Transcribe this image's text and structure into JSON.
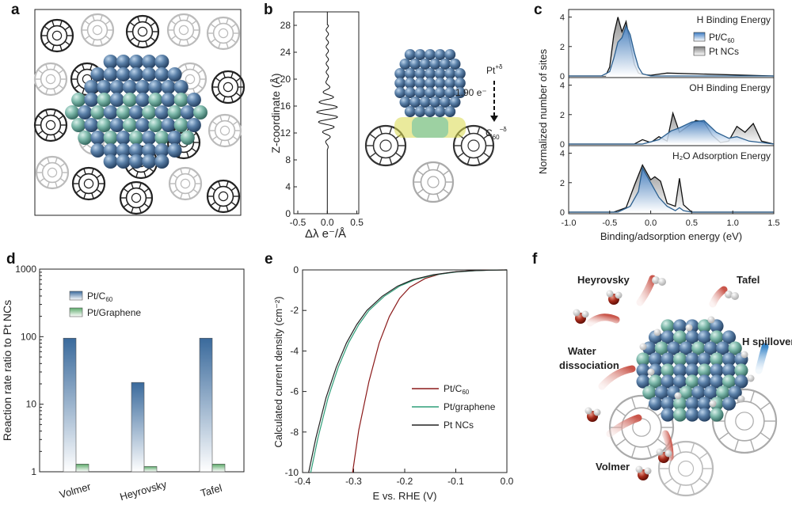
{
  "panel_labels": {
    "a": "a",
    "b": "b",
    "c": "c",
    "d": "d",
    "e": "e",
    "f": "f"
  },
  "panel_b": {
    "ylabel": "Z-coordinate (Å)",
    "xlabel": "Δλ e⁻/Å",
    "yticks": [
      "0",
      "4",
      "8",
      "12",
      "16",
      "20",
      "24",
      "28"
    ],
    "xticks": [
      "-0.5",
      "0.0",
      "0.5"
    ],
    "charge_top": "Pt",
    "charge_top_sup": "+δ",
    "transfer": "1.90 e⁻",
    "charge_bottom": "C",
    "charge_bottom_sub": "60",
    "charge_bottom_sup": "−δ"
  },
  "chart_data": [
    {
      "id": "c",
      "type": "line",
      "xlabel": "Binding/adsorption energy (eV)",
      "ylabel": "Normalized number of sites",
      "xlim": [
        -1.0,
        1.5
      ],
      "xticks": [
        "-1.0",
        "-0.5",
        "0.0",
        "0.5",
        "1.0",
        "1.5"
      ],
      "legend": [
        "Pt/C",
        "Pt NCs"
      ],
      "legend_sub": "60",
      "subplots": [
        {
          "title": "H Binding Energy",
          "ylim": [
            0,
            4.3
          ],
          "yticks": [
            "0",
            "2",
            "4"
          ],
          "pt_c60": {
            "x": [
              -1.0,
              -0.6,
              -0.5,
              -0.45,
              -0.4,
              -0.35,
              -0.3,
              -0.25,
              -0.2,
              -0.15,
              -0.1,
              0.0,
              1.5
            ],
            "y": [
              0,
              0,
              0.3,
              1.2,
              2.3,
              2.6,
              3.4,
              2.8,
              1.6,
              0.6,
              0.15,
              0,
              0
            ]
          },
          "pt_ncs": {
            "x": [
              -1.0,
              -0.55,
              -0.5,
              -0.45,
              -0.4,
              -0.35,
              -0.3,
              -0.25,
              -0.2,
              -0.15,
              -0.1,
              0.0,
              0.2,
              1.5
            ],
            "y": [
              0,
              0,
              0.6,
              2.8,
              4.0,
              3.0,
              3.7,
              2.2,
              0.8,
              0.2,
              0.1,
              0.05,
              0.2,
              0
            ]
          }
        },
        {
          "title": "OH Binding Energy",
          "ylim": [
            0,
            4.3
          ],
          "yticks": [
            "0",
            "2",
            "4"
          ],
          "pt_c60": {
            "x": [
              -1.0,
              -0.1,
              0.1,
              0.25,
              0.35,
              0.5,
              0.65,
              0.8,
              0.95,
              1.05,
              1.2,
              1.5
            ],
            "y": [
              0,
              0,
              0.3,
              0.9,
              1.1,
              1.5,
              1.6,
              0.8,
              0.4,
              0.5,
              0.2,
              0
            ]
          },
          "pt_ncs": {
            "x": [
              -1.0,
              -0.2,
              -0.1,
              0.0,
              0.1,
              0.2,
              0.27,
              0.35,
              0.45,
              0.55,
              0.65,
              0.75,
              0.85,
              0.95,
              1.05,
              1.15,
              1.25,
              1.35,
              1.5
            ],
            "y": [
              0,
              0,
              0.3,
              0.1,
              0.5,
              0.2,
              2.1,
              0.8,
              1.2,
              1.6,
              1.5,
              0.6,
              0.1,
              0.2,
              1.2,
              0.8,
              1.4,
              0.2,
              0
            ]
          }
        },
        {
          "title": "H₂O Adsorption Energy",
          "ylim": [
            0,
            4.3
          ],
          "yticks": [
            "0",
            "2",
            "4"
          ],
          "pt_c60": {
            "x": [
              -1.0,
              -0.4,
              -0.25,
              -0.15,
              -0.1,
              0.0,
              0.1,
              0.2,
              0.3,
              0.35,
              0.4,
              0.5,
              1.5
            ],
            "y": [
              0,
              0,
              0.4,
              1.4,
              3.0,
              2.0,
              1.0,
              0.4,
              0.1,
              0.3,
              0.1,
              0,
              0
            ]
          },
          "pt_ncs": {
            "x": [
              -1.0,
              -0.45,
              -0.3,
              -0.2,
              -0.1,
              0.0,
              0.05,
              0.12,
              0.2,
              0.3,
              0.35,
              0.4,
              0.5,
              1.5
            ],
            "y": [
              0,
              0,
              0.3,
              1.8,
              3.2,
              2.2,
              2.4,
              2.1,
              0.6,
              0.4,
              2.3,
              0.5,
              0,
              0
            ]
          }
        }
      ]
    },
    {
      "id": "d",
      "type": "bar",
      "ylabel": "Reaction rate ratio to Pt NCs",
      "yscale": "log",
      "ylim": [
        1,
        1000
      ],
      "yticks": [
        "1",
        "10",
        "100",
        "1000"
      ],
      "categories": [
        "Volmer",
        "Heyrovsky",
        "Tafel"
      ],
      "legend_sub": "60",
      "series": [
        {
          "name": "Pt/C",
          "values": [
            95,
            21,
            95
          ]
        },
        {
          "name": "Pt/Graphene",
          "values": [
            1.3,
            1.2,
            1.3
          ]
        }
      ]
    },
    {
      "id": "e",
      "type": "line",
      "xlabel": "E vs. RHE (V)",
      "ylabel": "Calculated current density (cm⁻²)",
      "xlim": [
        -0.4,
        0.0
      ],
      "ylim": [
        -10,
        0
      ],
      "xticks": [
        "-0.4",
        "-0.3",
        "-0.2",
        "-0.1",
        "0.0"
      ],
      "yticks": [
        "0",
        "-2",
        "-4",
        "-6",
        "-8",
        "-10"
      ],
      "legend_sub": "60",
      "series": [
        {
          "name": "Pt/C",
          "color": "#8b1a1a",
          "x": [
            -0.302,
            -0.29,
            -0.27,
            -0.25,
            -0.23,
            -0.21,
            -0.19,
            -0.16,
            -0.13,
            -0.1,
            -0.07,
            -0.04,
            -0.02,
            0.0
          ],
          "y": [
            -10,
            -7.9,
            -5.5,
            -3.6,
            -2.3,
            -1.4,
            -0.85,
            -0.42,
            -0.2,
            -0.09,
            -0.04,
            -0.015,
            -0.005,
            0
          ]
        },
        {
          "name": "Pt/graphene",
          "color": "#2e9e78",
          "x": [
            -0.384,
            -0.37,
            -0.35,
            -0.33,
            -0.31,
            -0.29,
            -0.27,
            -0.24,
            -0.21,
            -0.18,
            -0.14,
            -0.1,
            -0.06,
            -0.03,
            0.0
          ],
          "y": [
            -10,
            -8.3,
            -6.3,
            -4.8,
            -3.6,
            -2.7,
            -2.0,
            -1.3,
            -0.8,
            -0.48,
            -0.24,
            -0.1,
            -0.035,
            -0.01,
            0
          ]
        },
        {
          "name": "Pt NCs",
          "color": "#222222",
          "x": [
            -0.388,
            -0.374,
            -0.354,
            -0.334,
            -0.314,
            -0.294,
            -0.274,
            -0.244,
            -0.214,
            -0.184,
            -0.144,
            -0.104,
            -0.064,
            -0.034,
            0.0
          ],
          "y": [
            -10,
            -8.3,
            -6.3,
            -4.8,
            -3.6,
            -2.7,
            -2.0,
            -1.3,
            -0.8,
            -0.48,
            -0.24,
            -0.1,
            -0.035,
            -0.01,
            0
          ]
        }
      ]
    }
  ],
  "panel_f": {
    "heyrovsky": "Heyrovsky",
    "tafel": "Tafel",
    "water1": "Water",
    "water2": "dissociation",
    "spillover": "H spillover",
    "volmer": "Volmer"
  }
}
